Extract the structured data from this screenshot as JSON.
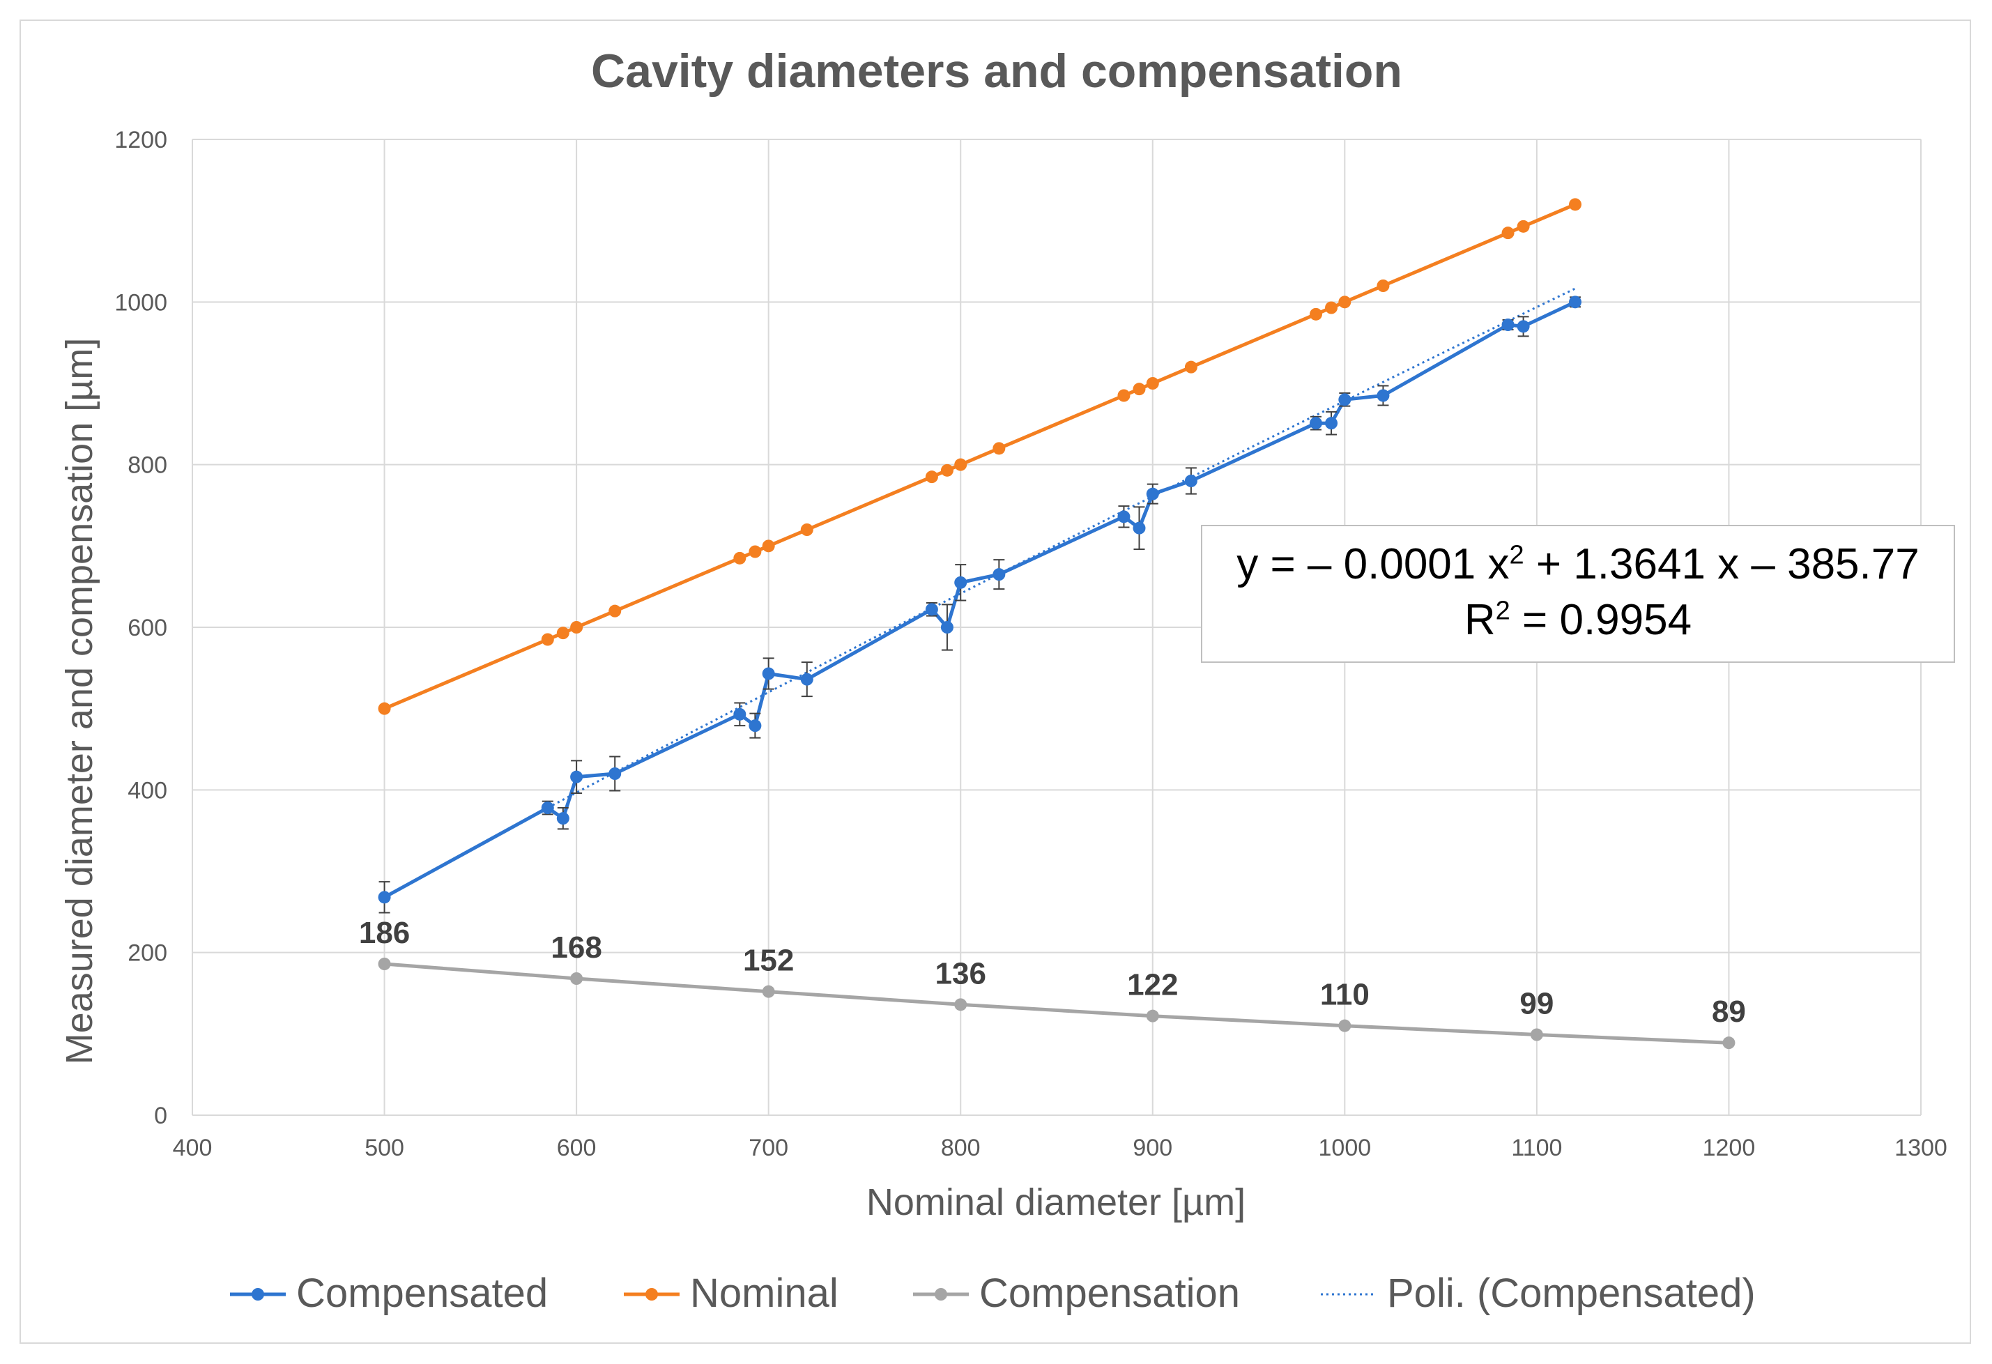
{
  "chart_data": {
    "type": "line",
    "title": "Cavity diameters and compensation",
    "xlabel": "Nominal diameter [µm]",
    "ylabel": "Measured diameter and compensation [µm]",
    "xlim": [
      400,
      1300
    ],
    "ylim": [
      0,
      1200
    ],
    "x_ticks": [
      400,
      500,
      600,
      700,
      800,
      900,
      1000,
      1100,
      1200,
      1300
    ],
    "y_ticks": [
      0,
      200,
      400,
      600,
      800,
      1000,
      1200
    ],
    "grid": true,
    "legend_position": "bottom",
    "series": [
      {
        "name": "Compensated",
        "color": "#2e75d0",
        "x": [
          500,
          585,
          593,
          600,
          620,
          685,
          693,
          700,
          720,
          785,
          793,
          800,
          820,
          885,
          893,
          900,
          920,
          985,
          993,
          1000,
          1020,
          1085,
          1093,
          1120
        ],
        "y": [
          268,
          378,
          365,
          416,
          420,
          493,
          479,
          543,
          536,
          622,
          600,
          655,
          665,
          736,
          722,
          764,
          780,
          851,
          851,
          880,
          885,
          972,
          970,
          1000
        ],
        "errors": [
          19,
          8,
          13,
          20,
          21,
          14,
          15,
          19,
          21,
          8,
          28,
          22,
          18,
          13,
          26,
          12,
          16,
          8,
          14,
          8,
          12,
          6,
          12,
          6
        ]
      },
      {
        "name": "Nominal",
        "color": "#f47f20",
        "x": [
          500,
          585,
          593,
          600,
          620,
          685,
          693,
          700,
          720,
          785,
          793,
          800,
          820,
          885,
          893,
          900,
          920,
          985,
          993,
          1000,
          1020,
          1085,
          1093,
          1120
        ],
        "y": [
          500,
          585,
          593,
          600,
          620,
          685,
          693,
          700,
          720,
          785,
          793,
          800,
          820,
          885,
          893,
          900,
          920,
          985,
          993,
          1000,
          1020,
          1085,
          1093,
          1120
        ]
      },
      {
        "name": "Compensation",
        "color": "#a5a5a5",
        "x": [
          500,
          600,
          700,
          800,
          900,
          1000,
          1100,
          1200
        ],
        "y": [
          186,
          168,
          152,
          136,
          122,
          110,
          99,
          89
        ],
        "labels": [
          "186",
          "168",
          "152",
          "136",
          "122",
          "110",
          "99",
          "89"
        ]
      },
      {
        "name": "Poli. (Compensated)",
        "color": "#2e75d0",
        "style": "dotted",
        "fit": {
          "a": -0.0001,
          "b": 1.3641,
          "c": -385.77
        },
        "x_range": [
          585,
          1120
        ]
      }
    ],
    "trendline_equation": {
      "line1_prefix": "y = – 0.0001 x",
      "line1_exp": "2",
      "line1_suffix": " + 1.3641 x – 385.77",
      "line2_prefix": "R",
      "line2_exp": "2",
      "line2_suffix": " = 0.9954"
    }
  }
}
